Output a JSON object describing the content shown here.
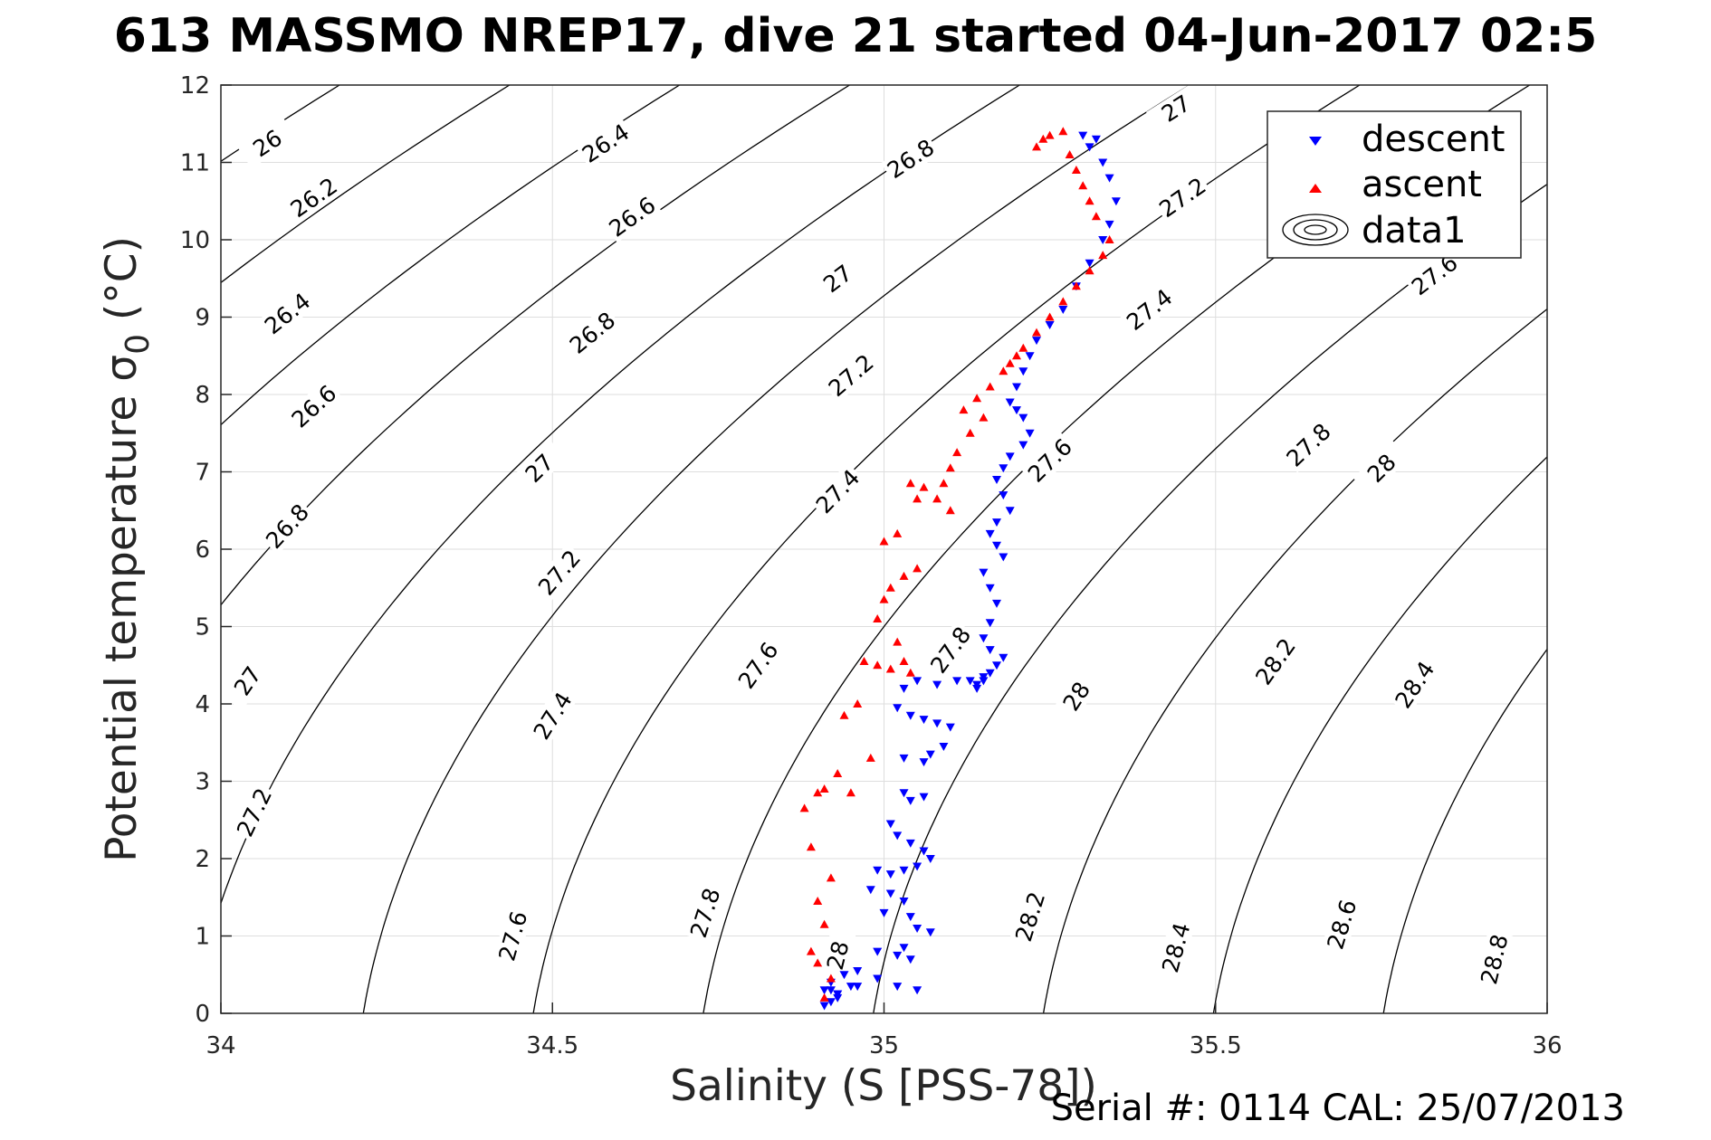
{
  "figure": {
    "title": "613 MASSMO NREP17, dive 21 started 04-Jun-2017 02:5",
    "footer": "Serial #: 0114  CAL: 25/07/2013"
  },
  "chart_data": {
    "type": "scatter",
    "title": "613 MASSMO NREP17, dive 21 started 04-Jun-2017 02:5",
    "xlabel": "Salinity (S [PSS-78])",
    "ylabel": "Potential temperature σ",
    "ylabel_subscript": "0",
    "ylabel_suffix": " (°C)",
    "xlim": [
      34,
      36
    ],
    "ylim": [
      0,
      12
    ],
    "xticks": [
      34,
      34.5,
      35,
      35.5,
      36
    ],
    "xtick_labels": [
      "34",
      "34.5",
      "35",
      "35.5",
      "36"
    ],
    "yticks": [
      0,
      1,
      2,
      3,
      4,
      5,
      6,
      7,
      8,
      9,
      10,
      11,
      12
    ],
    "ytick_labels": [
      "0",
      "1",
      "2",
      "3",
      "4",
      "5",
      "6",
      "7",
      "8",
      "9",
      "10",
      "11",
      "12"
    ],
    "grid": true,
    "legend_position": "top-right",
    "legend": [
      {
        "label": "descent",
        "marker": "triangle-down",
        "color": "#0000ff"
      },
      {
        "label": "ascent",
        "marker": "triangle-up",
        "color": "#ff0000"
      },
      {
        "label": "data1",
        "marker": "contour",
        "color": "#000000"
      }
    ],
    "contour_levels": [
      26,
      26.2,
      26.4,
      26.6,
      26.8,
      27,
      27.2,
      27.4,
      27.6,
      27.8,
      28,
      28.2,
      28.4,
      28.6,
      28.8
    ],
    "contour_labels": [
      {
        "level": 26,
        "text": "26",
        "s": 34.07,
        "t": 11.25
      },
      {
        "level": 26.2,
        "text": "26.2",
        "s": 34.14,
        "t": 10.55
      },
      {
        "level": 26.4,
        "text": "26.4",
        "s": 34.1,
        "t": 9.05
      },
      {
        "level": 26.6,
        "text": "26.6",
        "s": 34.14,
        "t": 7.85
      },
      {
        "level": 26.8,
        "text": "26.8",
        "s": 34.1,
        "t": 6.3
      },
      {
        "level": 27,
        "text": "27",
        "s": 34.04,
        "t": 4.3
      },
      {
        "level": 27.2,
        "text": "27.2",
        "s": 34.05,
        "t": 2.6
      },
      {
        "level": 26.4,
        "text": "26.4",
        "s": 34.58,
        "t": 11.25
      },
      {
        "level": 26.6,
        "text": "26.6",
        "s": 34.62,
        "t": 10.3
      },
      {
        "level": 26.8,
        "text": "26.8",
        "s": 34.56,
        "t": 8.8
      },
      {
        "level": 27,
        "text": "27",
        "s": 34.48,
        "t": 7.05
      },
      {
        "level": 27.2,
        "text": "27.2",
        "s": 34.51,
        "t": 5.7
      },
      {
        "level": 27.4,
        "text": "27.4",
        "s": 34.5,
        "t": 3.85
      },
      {
        "level": 27.6,
        "text": "27.6",
        "s": 34.44,
        "t": 1.0
      },
      {
        "level": 26.8,
        "text": "26.8",
        "s": 35.04,
        "t": 11.05
      },
      {
        "level": 27,
        "text": "27",
        "s": 34.93,
        "t": 9.5
      },
      {
        "level": 27.2,
        "text": "27.2",
        "s": 34.95,
        "t": 8.25
      },
      {
        "level": 27.4,
        "text": "27.4",
        "s": 34.93,
        "t": 6.75
      },
      {
        "level": 27.6,
        "text": "27.6",
        "s": 34.81,
        "t": 4.5
      },
      {
        "level": 27.8,
        "text": "27.8",
        "s": 34.73,
        "t": 1.3
      },
      {
        "level": 28,
        "text": "28",
        "s": 34.93,
        "t": 0.75
      },
      {
        "level": 27,
        "text": "27",
        "s": 35.44,
        "t": 11.7
      },
      {
        "level": 27.2,
        "text": "27.2",
        "s": 35.45,
        "t": 10.55
      },
      {
        "level": 27.4,
        "text": "27.4",
        "s": 35.4,
        "t": 9.1
      },
      {
        "level": 27.6,
        "text": "27.6",
        "s": 35.25,
        "t": 7.15
      },
      {
        "level": 27.8,
        "text": "27.8",
        "s": 35.1,
        "t": 4.7
      },
      {
        "level": 28,
        "text": "28",
        "s": 35.29,
        "t": 4.1
      },
      {
        "level": 28.2,
        "text": "28.2",
        "s": 35.22,
        "t": 1.25
      },
      {
        "level": 27.6,
        "text": "27.6",
        "s": 35.83,
        "t": 9.55
      },
      {
        "level": 27.8,
        "text": "27.8",
        "s": 35.64,
        "t": 7.35
      },
      {
        "level": 28,
        "text": "28",
        "s": 35.75,
        "t": 7.05
      },
      {
        "level": 28.2,
        "text": "28.2",
        "s": 35.59,
        "t": 4.55
      },
      {
        "level": 28.4,
        "text": "28.4",
        "s": 35.44,
        "t": 0.85
      },
      {
        "level": 28.4,
        "text": "28.4",
        "s": 35.8,
        "t": 4.25
      },
      {
        "level": 28.6,
        "text": "28.6",
        "s": 35.69,
        "t": 1.15
      },
      {
        "level": 28.8,
        "text": "28.8",
        "s": 35.92,
        "t": 0.7
      }
    ],
    "series": [
      {
        "name": "descent",
        "marker": "triangle-down",
        "color": "#0000ff",
        "x": [
          35.3,
          35.32,
          35.31,
          35.33,
          35.34,
          35.35,
          35.34,
          35.33,
          35.31,
          35.29,
          35.27,
          35.25,
          35.23,
          35.22,
          35.21,
          35.2,
          35.19,
          35.2,
          35.21,
          35.22,
          35.21,
          35.19,
          35.18,
          35.17,
          35.18,
          35.19,
          35.17,
          35.16,
          35.17,
          35.18,
          35.15,
          35.16,
          35.17,
          35.16,
          35.15,
          35.16,
          35.17,
          35.15,
          35.14,
          35.13,
          35.15,
          35.16,
          35.18,
          35.14,
          35.11,
          35.08,
          35.05,
          35.03,
          35.02,
          35.04,
          35.06,
          35.08,
          35.1,
          35.03,
          35.06,
          35.07,
          35.09,
          35.03,
          35.04,
          35.06,
          35.01,
          35.02,
          35.04,
          35.06,
          34.99,
          35.01,
          35.03,
          35.05,
          35.07,
          34.98,
          35.01,
          35.03,
          35.0,
          35.04,
          35.05,
          35.07,
          35.03,
          35.04,
          34.99,
          35.02,
          34.96,
          34.99,
          35.02,
          35.05,
          34.94,
          34.92,
          34.91,
          34.93,
          34.96,
          34.92,
          34.93,
          34.91,
          34.92,
          34.93,
          34.95
        ],
        "y": [
          11.35,
          11.3,
          11.2,
          11.0,
          10.8,
          10.5,
          10.2,
          10.0,
          9.7,
          9.4,
          9.1,
          8.9,
          8.7,
          8.5,
          8.3,
          8.1,
          7.9,
          7.8,
          7.7,
          7.5,
          7.35,
          7.2,
          7.05,
          6.9,
          6.7,
          6.5,
          6.35,
          6.2,
          6.05,
          5.9,
          5.7,
          5.5,
          5.3,
          5.05,
          4.85,
          4.7,
          4.5,
          4.3,
          4.25,
          4.3,
          4.35,
          4.4,
          4.6,
          4.2,
          4.3,
          4.25,
          4.3,
          4.2,
          3.95,
          3.85,
          3.8,
          3.75,
          3.7,
          3.3,
          3.25,
          3.35,
          3.45,
          2.85,
          2.75,
          2.8,
          2.45,
          2.3,
          2.2,
          2.1,
          1.85,
          1.8,
          1.85,
          1.9,
          2.0,
          1.6,
          1.55,
          1.45,
          1.3,
          1.25,
          1.1,
          1.05,
          0.85,
          0.7,
          0.8,
          0.75,
          0.55,
          0.45,
          0.35,
          0.3,
          0.5,
          0.4,
          0.3,
          0.25,
          0.35,
          0.15,
          0.2,
          0.1,
          0.3,
          0.25,
          0.35
        ]
      },
      {
        "name": "ascent",
        "marker": "triangle-up",
        "color": "#ff0000",
        "x": [
          35.25,
          35.27,
          35.23,
          35.24,
          35.28,
          35.29,
          35.3,
          35.31,
          35.32,
          35.34,
          35.33,
          35.31,
          35.29,
          35.27,
          35.25,
          35.23,
          35.21,
          35.2,
          35.19,
          35.18,
          35.16,
          35.14,
          35.12,
          35.15,
          35.13,
          35.11,
          35.1,
          35.09,
          35.06,
          35.08,
          35.1,
          35.04,
          35.05,
          35.02,
          35.0,
          35.03,
          35.01,
          35.05,
          35.0,
          34.99,
          35.02,
          35.03,
          35.04,
          34.97,
          34.99,
          35.01,
          34.96,
          34.94,
          34.98,
          34.93,
          34.91,
          34.9,
          34.95,
          34.88,
          34.89,
          34.92,
          34.9,
          34.91,
          34.89,
          34.9,
          34.92,
          34.91
        ],
        "y": [
          11.35,
          11.4,
          11.2,
          11.3,
          11.1,
          10.9,
          10.7,
          10.5,
          10.3,
          10.0,
          9.8,
          9.6,
          9.4,
          9.2,
          9.0,
          8.8,
          8.6,
          8.5,
          8.4,
          8.3,
          8.1,
          7.95,
          7.8,
          7.7,
          7.5,
          7.25,
          7.05,
          6.85,
          6.8,
          6.65,
          6.5,
          6.85,
          6.65,
          6.2,
          6.1,
          5.65,
          5.5,
          5.75,
          5.35,
          5.1,
          4.8,
          4.55,
          4.4,
          4.55,
          4.5,
          4.45,
          4.0,
          3.85,
          3.3,
          3.1,
          2.9,
          2.85,
          2.85,
          2.65,
          2.15,
          1.75,
          1.45,
          1.15,
          0.8,
          0.65,
          0.45,
          0.2
        ]
      }
    ]
  }
}
